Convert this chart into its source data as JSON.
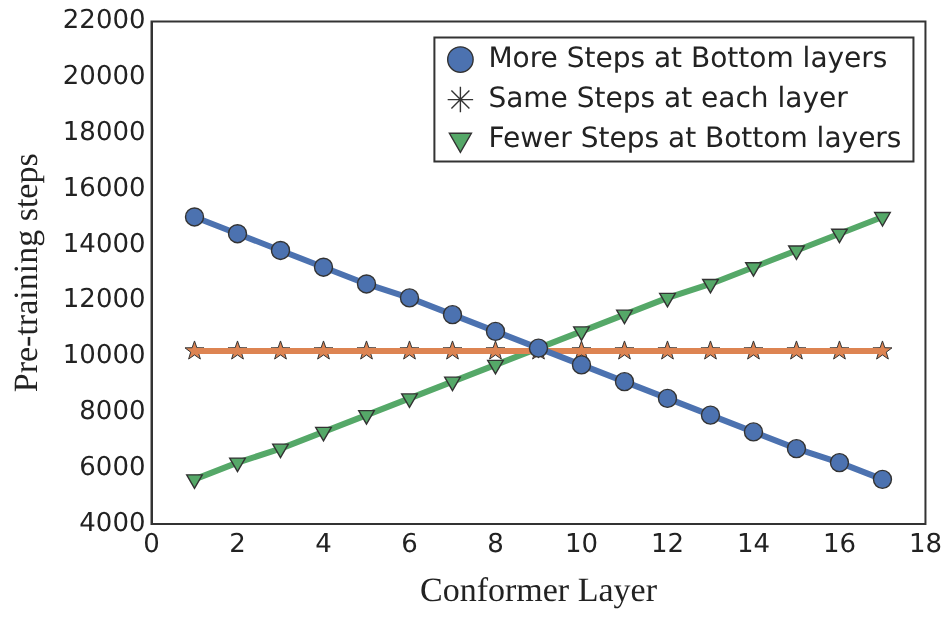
{
  "chart_data": {
    "type": "line",
    "xlabel": "Conformer Layer",
    "ylabel": "Pre-training steps",
    "x": [
      1,
      2,
      3,
      4,
      5,
      6,
      7,
      8,
      9,
      10,
      11,
      12,
      13,
      14,
      15,
      16,
      17
    ],
    "series": [
      {
        "name": "More Steps at Bottom layers",
        "color": "#4c72b0",
        "marker": "circle",
        "values": [
          15000,
          14400,
          13800,
          13200,
          12600,
          12100,
          11500,
          10900,
          10300,
          9700,
          9100,
          8500,
          7900,
          7300,
          6700,
          6200,
          5600
        ]
      },
      {
        "name": "Same Steps at each layer",
        "color": "#dd8452",
        "marker": "star",
        "values": [
          10200,
          10200,
          10200,
          10200,
          10200,
          10200,
          10200,
          10200,
          10200,
          10200,
          10200,
          10200,
          10200,
          10200,
          10200,
          10200,
          10200
        ]
      },
      {
        "name": "Fewer Steps at Bottom layers",
        "color": "#55a868",
        "marker": "triangle",
        "values": [
          5600,
          6200,
          6700,
          7300,
          7900,
          8500,
          9100,
          9700,
          10300,
          10900,
          11500,
          12100,
          12600,
          13200,
          13800,
          14400,
          15000
        ]
      }
    ],
    "xlim": [
      0,
      18
    ],
    "xticks": [
      0,
      2,
      4,
      6,
      8,
      10,
      12,
      14,
      16,
      18
    ],
    "ylim": [
      4000,
      22000
    ],
    "yticks": [
      4000,
      6000,
      8000,
      10000,
      12000,
      14000,
      16000,
      18000,
      20000,
      22000
    ],
    "grid": false,
    "legend": "top right",
    "line_style": "solid"
  }
}
